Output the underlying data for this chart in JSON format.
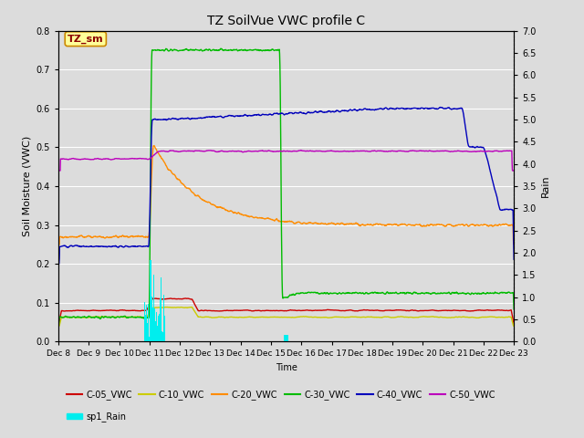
{
  "title": "TZ SoilVue VWC profile C",
  "xlabel": "Time",
  "ylabel_left": "Soil Moisture (VWC)",
  "ylabel_right": "Rain",
  "annotation": "TZ_sm",
  "ylim_left": [
    0.0,
    0.8
  ],
  "ylim_right": [
    0.0,
    7.0
  ],
  "yticks_left": [
    0.0,
    0.1,
    0.2,
    0.3,
    0.4,
    0.5,
    0.6,
    0.7,
    0.8
  ],
  "yticks_right": [
    0.0,
    0.5,
    1.0,
    1.5,
    2.0,
    2.5,
    3.0,
    3.5,
    4.0,
    4.5,
    5.0,
    5.5,
    6.0,
    6.5,
    7.0
  ],
  "fig_bg_color": "#dcdcdc",
  "plot_bg_color": "#dcdcdc",
  "series_colors": {
    "C-05_VWC": "#cc0000",
    "C-10_VWC": "#cccc00",
    "C-20_VWC": "#ff8c00",
    "C-30_VWC": "#00bb00",
    "C-40_VWC": "#0000bb",
    "C-50_VWC": "#bb00bb",
    "sp1_Rain": "#00eeee"
  },
  "date_labels": [
    "Dec 8",
    "Dec 9",
    "Dec 10",
    "Dec 11",
    "Dec 12",
    "Dec 13",
    "Dec 14",
    "Dec 15",
    "Dec 16",
    "Dec 17",
    "Dec 18",
    "Dec 19",
    "Dec 20",
    "Dec 21",
    "Dec 22",
    "Dec 23"
  ],
  "legend_row1": [
    "C-05_VWC",
    "C-10_VWC",
    "C-20_VWC",
    "C-30_VWC",
    "C-40_VWC",
    "C-50_VWC"
  ],
  "legend_row2": [
    "sp1_Rain"
  ]
}
